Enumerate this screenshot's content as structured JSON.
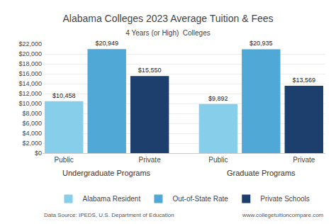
{
  "chart_data": {
    "type": "bar",
    "title": "Alabama Colleges 2023 Average Tuition & Fees",
    "subtitle": "4 Years (or High)  Colleges",
    "categories": [
      "Public",
      null,
      "Private",
      "Public",
      null,
      "Private"
    ],
    "series": [
      {
        "name": "Alabama Resident",
        "color": "#87ceeb",
        "values": [
          10458,
          null,
          null,
          9892,
          null,
          null
        ],
        "value_labels": [
          "$10,458",
          null,
          null,
          "$9,892",
          null,
          null
        ]
      },
      {
        "name": "Out-of-State Rate",
        "color": "#4fa8d5",
        "values": [
          null,
          20949,
          null,
          null,
          20935,
          null
        ],
        "value_labels": [
          null,
          "$20,949",
          null,
          null,
          "$20,935",
          null
        ]
      },
      {
        "name": "Private Schools",
        "color": "#1c3f6e",
        "values": [
          null,
          null,
          15550,
          null,
          null,
          13569
        ],
        "value_labels": [
          null,
          null,
          "$15,550",
          null,
          null,
          "$13,569"
        ]
      }
    ],
    "ylim": [
      0,
      22000
    ],
    "yticks": [
      {
        "value": 0,
        "label": "$0"
      },
      {
        "value": 2000,
        "label": "$2,000"
      },
      {
        "value": 4000,
        "label": "$4,000"
      },
      {
        "value": 6000,
        "label": "$6,000"
      },
      {
        "value": 8000,
        "label": "$8,000"
      },
      {
        "value": 10000,
        "label": "$10,000"
      },
      {
        "value": 12000,
        "label": "$12,000"
      },
      {
        "value": 14000,
        "label": "$14,000"
      },
      {
        "value": 16000,
        "label": "$16,000"
      },
      {
        "value": 18000,
        "label": "$18,000"
      },
      {
        "value": 20000,
        "label": "$20,000"
      },
      {
        "value": 22000,
        "label": "$22,000"
      }
    ],
    "grid": true,
    "legend": "bottom",
    "data_labels": true,
    "annotations": [
      {
        "text": "Undergraduate Programs",
        "x": 1
      },
      {
        "text": "Graduate Programs",
        "x": 4
      },
      {
        "text": "Data Source: IPEDS, U.S. Department of Education"
      },
      {
        "text": "www.collegetuitioncompare.com"
      }
    ]
  }
}
